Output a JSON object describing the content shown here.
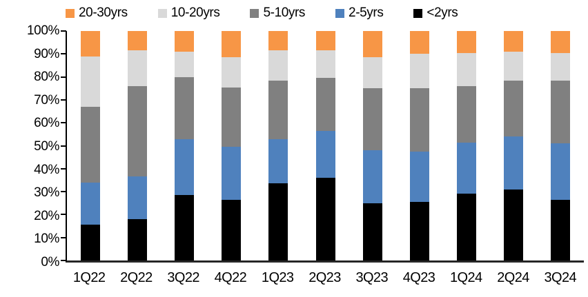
{
  "chart_data": {
    "type": "bar",
    "stacked": true,
    "percent_stacked": true,
    "title": "",
    "xlabel": "",
    "ylabel": "",
    "ylim": [
      0,
      100
    ],
    "grid": false,
    "legend_position": "top",
    "categories": [
      "1Q22",
      "2Q22",
      "3Q22",
      "4Q22",
      "1Q23",
      "2Q23",
      "3Q23",
      "4Q23",
      "1Q24",
      "2Q24",
      "3Q24"
    ],
    "series": [
      {
        "name": "<2yrs",
        "color": "#000000",
        "values": [
          15.5,
          18.0,
          28.5,
          26.5,
          33.5,
          36.0,
          25.0,
          25.5,
          29.0,
          31.0,
          26.5
        ]
      },
      {
        "name": "2-5yrs",
        "color": "#4F81BD",
        "values": [
          18.5,
          18.5,
          24.5,
          23.0,
          19.5,
          20.5,
          23.0,
          22.0,
          22.5,
          23.0,
          24.5
        ]
      },
      {
        "name": "5-10yrs",
        "color": "#808080",
        "values": [
          33.0,
          39.5,
          27.0,
          26.0,
          25.5,
          23.0,
          27.0,
          27.5,
          24.5,
          24.5,
          27.5
        ]
      },
      {
        "name": "10-20yrs",
        "color": "#D9D9D9",
        "values": [
          22.0,
          15.5,
          11.0,
          13.0,
          13.0,
          12.0,
          13.5,
          15.0,
          14.5,
          12.5,
          12.0
        ]
      },
      {
        "name": "20-30yrs",
        "color": "#F79646",
        "values": [
          11.0,
          8.5,
          9.0,
          11.5,
          8.5,
          8.5,
          11.5,
          10.0,
          9.5,
          9.0,
          9.5
        ]
      }
    ],
    "legend_order": [
      "20-30yrs",
      "10-20yrs",
      "5-10yrs",
      "2-5yrs",
      "<2yrs"
    ],
    "y_tick_labels": [
      "0%",
      "10%",
      "20%",
      "30%",
      "40%",
      "50%",
      "60%",
      "70%",
      "80%",
      "90%",
      "100%"
    ],
    "axis_color": "#000000"
  }
}
